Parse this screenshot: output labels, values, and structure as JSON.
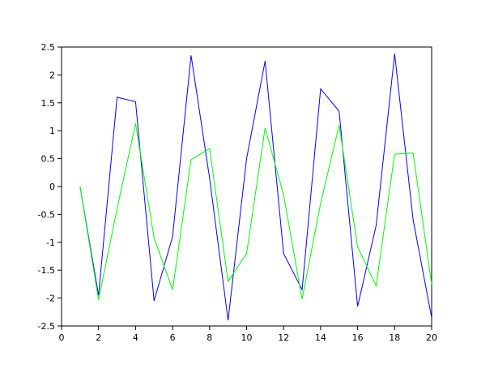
{
  "chart_data": {
    "type": "line",
    "x": [
      1,
      2,
      3,
      4,
      5,
      6,
      7,
      8,
      9,
      10,
      11,
      12,
      13,
      14,
      15,
      16,
      17,
      18,
      19,
      20
    ],
    "series": [
      {
        "color": "#0000ff",
        "values": [
          0,
          -1.95,
          1.6,
          1.52,
          -2.05,
          -0.9,
          2.35,
          0.15,
          -2.4,
          0.5,
          2.25,
          -1.2,
          -1.85,
          1.75,
          1.35,
          -2.15,
          -0.7,
          2.38,
          -0.6,
          -2.35
        ]
      },
      {
        "color": "#00ff00",
        "values": [
          0,
          -2.03,
          -0.4,
          1.13,
          -0.92,
          -1.85,
          0.48,
          0.68,
          -1.7,
          -1.2,
          1.05,
          -0.15,
          -2.02,
          -0.3,
          1.1,
          -1.08,
          -1.78,
          0.58,
          0.6,
          -1.75
        ]
      }
    ],
    "xlim": [
      0,
      20
    ],
    "xticks": [
      0,
      2,
      4,
      6,
      8,
      10,
      12,
      14,
      16,
      18,
      20
    ],
    "ylim": [
      -2.5,
      2.5
    ],
    "yticks": [
      -2.5,
      -2,
      -1.5,
      -1,
      -0.5,
      0,
      0.5,
      1,
      1.5,
      2,
      2.5
    ]
  }
}
